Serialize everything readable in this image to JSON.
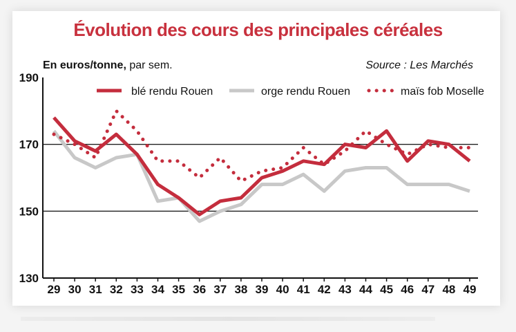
{
  "colors": {
    "title": "#c8313e",
    "ble": "#c42d3d",
    "orge": "#c8c8c8",
    "mais": "#c42d3d",
    "grid": "#222222",
    "axis": "#111111"
  },
  "chart_data": {
    "type": "line",
    "title": "Évolution des cours des principales céréales",
    "unit_bold": "En euros/tonne,",
    "unit_rest": " par sem.",
    "source": "Source : Les Marchés",
    "x": [
      29,
      30,
      31,
      32,
      33,
      34,
      35,
      36,
      37,
      38,
      39,
      40,
      41,
      42,
      43,
      44,
      45,
      46,
      47,
      48,
      49
    ],
    "ylim": [
      130,
      190
    ],
    "yticks": [
      190,
      170,
      150,
      130
    ],
    "gridlines": [
      170,
      150
    ],
    "legend_position": "top",
    "series": [
      {
        "name": "blé rendu Rouen",
        "style": "solid-thick",
        "values": [
          178,
          171,
          168,
          173,
          167,
          158,
          154,
          149,
          153,
          154,
          160,
          162,
          165,
          164,
          170,
          169,
          174,
          165,
          171,
          170,
          165
        ]
      },
      {
        "name": "orge rendu Rouen",
        "style": "solid-gray",
        "values": [
          174,
          166,
          163,
          166,
          167,
          153,
          154,
          147,
          150,
          152,
          158,
          158,
          161,
          156,
          162,
          163,
          163,
          158,
          158,
          158,
          156
        ]
      },
      {
        "name": "maïs fob Moselle",
        "style": "dotted",
        "values": [
          173,
          170,
          166,
          180,
          174,
          165,
          165,
          160,
          166,
          159,
          162,
          163,
          169,
          164,
          168,
          174,
          170,
          167,
          170,
          169,
          169
        ]
      }
    ]
  }
}
